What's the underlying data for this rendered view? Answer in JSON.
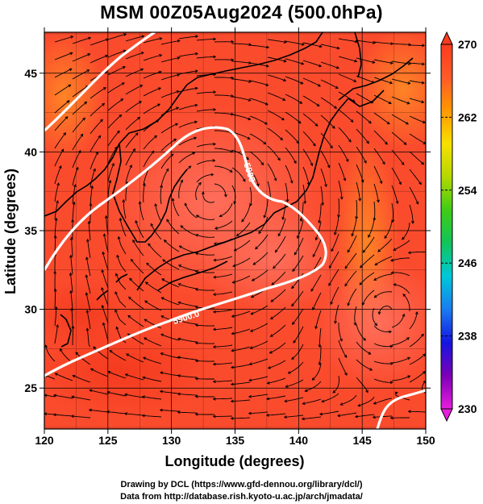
{
  "title": "MSM 00Z05Aug2024 (500.0hPa)",
  "map": {
    "x_axis_label": "Longitude (degrees)",
    "y_axis_label": "Latitude  (degrees)",
    "lon_ticks": [
      "120",
      "125",
      "130",
      "135",
      "140",
      "145",
      "150"
    ],
    "lat_ticks": [
      "25",
      "30",
      "35",
      "40",
      "45"
    ],
    "lon_range": [
      120,
      150
    ],
    "lat_range": [
      22.4,
      47.6
    ],
    "grid": true,
    "contour_labels": [
      "5880",
      "5900.0"
    ],
    "field_colors": {
      "warm": "#fd6b4b",
      "warmer": "#fb4b2d",
      "hot": "#f2391e",
      "orange": "#ff7e1a",
      "contour": "#ffffff",
      "lines": "#000000"
    }
  },
  "colorbar": {
    "min": 230,
    "max": 270,
    "labels": [
      "270",
      "262",
      "254",
      "246",
      "238",
      "230"
    ],
    "stops": [
      "#e81edd",
      "#7b00b6",
      "#1515e0",
      "#1a7cf0",
      "#00c8d8",
      "#12c45a",
      "#3fcb16",
      "#b4d800",
      "#f8e000",
      "#ff9800",
      "#ff5a28",
      "#fb3c1e"
    ]
  },
  "footer": {
    "line1": "Drawing by DCL (https://www.gfd-dennou.org/library/dcl/)",
    "line2": "Data from http://database.rish.kyoto-u.ac.jp/arch/jmadata/"
  }
}
